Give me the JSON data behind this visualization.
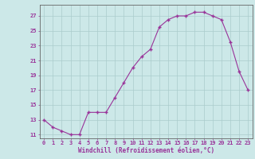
{
  "x": [
    0,
    1,
    2,
    3,
    4,
    5,
    6,
    7,
    8,
    9,
    10,
    11,
    12,
    13,
    14,
    15,
    16,
    17,
    18,
    19,
    20,
    21,
    22,
    23
  ],
  "y": [
    13.0,
    12.0,
    11.5,
    11.0,
    11.0,
    14.0,
    14.0,
    14.0,
    16.0,
    18.0,
    20.0,
    21.5,
    22.5,
    25.5,
    26.5,
    27.0,
    27.0,
    27.5,
    27.5,
    27.0,
    26.5,
    23.5,
    19.5,
    17.0
  ],
  "line_color": "#993399",
  "marker": "+",
  "marker_size": 3.5,
  "marker_lw": 1.0,
  "bg_color": "#cce8e8",
  "grid_color": "#aacccc",
  "axis_color": "#666666",
  "tick_color": "#993399",
  "xlabel": "Windchill (Refroidissement éolien,°C)",
  "ylabel_ticks": [
    11,
    13,
    15,
    17,
    19,
    21,
    23,
    25,
    27
  ],
  "ylim": [
    10.5,
    28.5
  ],
  "xlim": [
    -0.5,
    23.5
  ],
  "tick_fontsize": 5.0,
  "xlabel_fontsize": 5.5
}
